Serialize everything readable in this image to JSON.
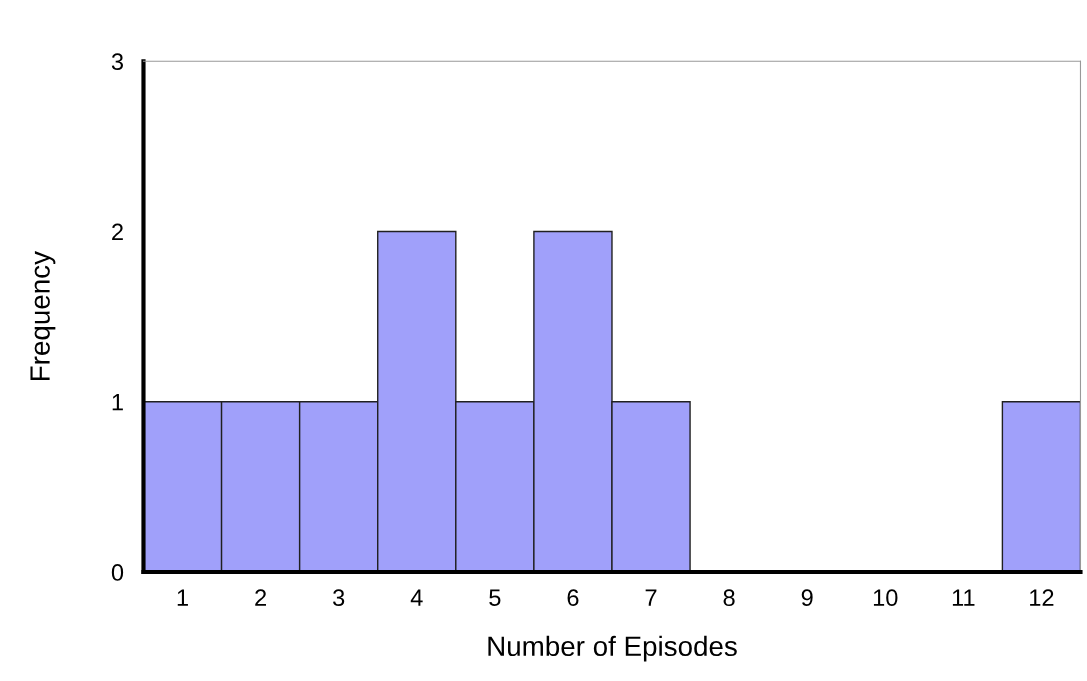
{
  "chart_data": {
    "type": "bar",
    "xlabel": "Number of Episodes",
    "ylabel": "Frequency",
    "categories": [
      "1",
      "2",
      "3",
      "4",
      "5",
      "6",
      "7",
      "8",
      "9",
      "10",
      "11",
      "12"
    ],
    "values": [
      1,
      1,
      1,
      2,
      1,
      2,
      1,
      0,
      0,
      0,
      0,
      1
    ],
    "color": "#a0a0fa",
    "ylim": [
      0,
      3
    ],
    "yticks": [
      0,
      1,
      2,
      3
    ],
    "grid": false,
    "legend": false
  }
}
